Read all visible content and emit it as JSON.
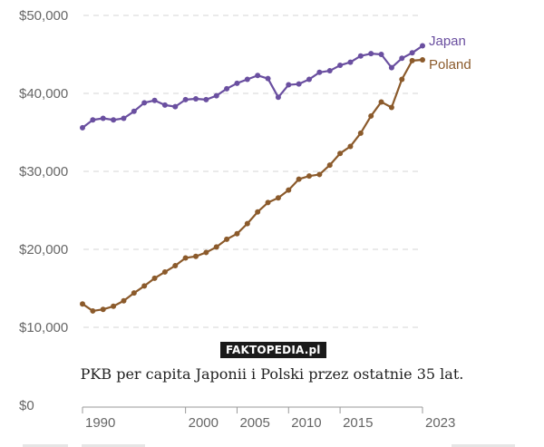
{
  "chart_data": {
    "type": "line",
    "x": [
      1990,
      1991,
      1992,
      1993,
      1994,
      1995,
      1996,
      1997,
      1998,
      1999,
      2000,
      2001,
      2002,
      2003,
      2004,
      2005,
      2006,
      2007,
      2008,
      2009,
      2010,
      2011,
      2012,
      2013,
      2014,
      2015,
      2016,
      2017,
      2018,
      2019,
      2020,
      2021,
      2022,
      2023
    ],
    "series": [
      {
        "name": "Japan",
        "color": "#6a4fa0",
        "values": [
          35600,
          36600,
          36800,
          36600,
          36800,
          37700,
          38800,
          39100,
          38500,
          38300,
          39200,
          39300,
          39200,
          39700,
          40600,
          41300,
          41800,
          42300,
          41900,
          39500,
          41100,
          41200,
          41800,
          42700,
          42900,
          43600,
          44000,
          44800,
          45100,
          45000,
          43300,
          44500,
          45200,
          46100
        ]
      },
      {
        "name": "Poland",
        "color": "#8b5a2b",
        "values": [
          13000,
          12100,
          12300,
          12700,
          13400,
          14400,
          15300,
          16300,
          17100,
          17900,
          18900,
          19100,
          19600,
          20300,
          21300,
          22000,
          23300,
          24800,
          26000,
          26600,
          27600,
          29000,
          29400,
          29600,
          30800,
          32300,
          33200,
          34900,
          37100,
          38900,
          38200,
          41800,
          44200,
          44300
        ]
      }
    ],
    "x_ticks": [
      "1990",
      "2000",
      "2005",
      "2010",
      "2015",
      "2023"
    ],
    "x_tick_values": [
      1990,
      2000,
      2005,
      2010,
      2015,
      2023
    ],
    "y_ticks": [
      "$0",
      "$10,000",
      "$20,000",
      "$30,000",
      "$40,000",
      "$50,000"
    ],
    "y_tick_values": [
      0,
      10000,
      20000,
      30000,
      40000,
      50000
    ],
    "xlim": [
      1990,
      2023
    ],
    "ylim": [
      0,
      50000
    ],
    "grid": true,
    "legend": "right-end labels"
  },
  "watermark": "FAKTOPEDIA.pl",
  "caption": "PKB per capita Japonii i Polski przez ostatnie 35 lat."
}
